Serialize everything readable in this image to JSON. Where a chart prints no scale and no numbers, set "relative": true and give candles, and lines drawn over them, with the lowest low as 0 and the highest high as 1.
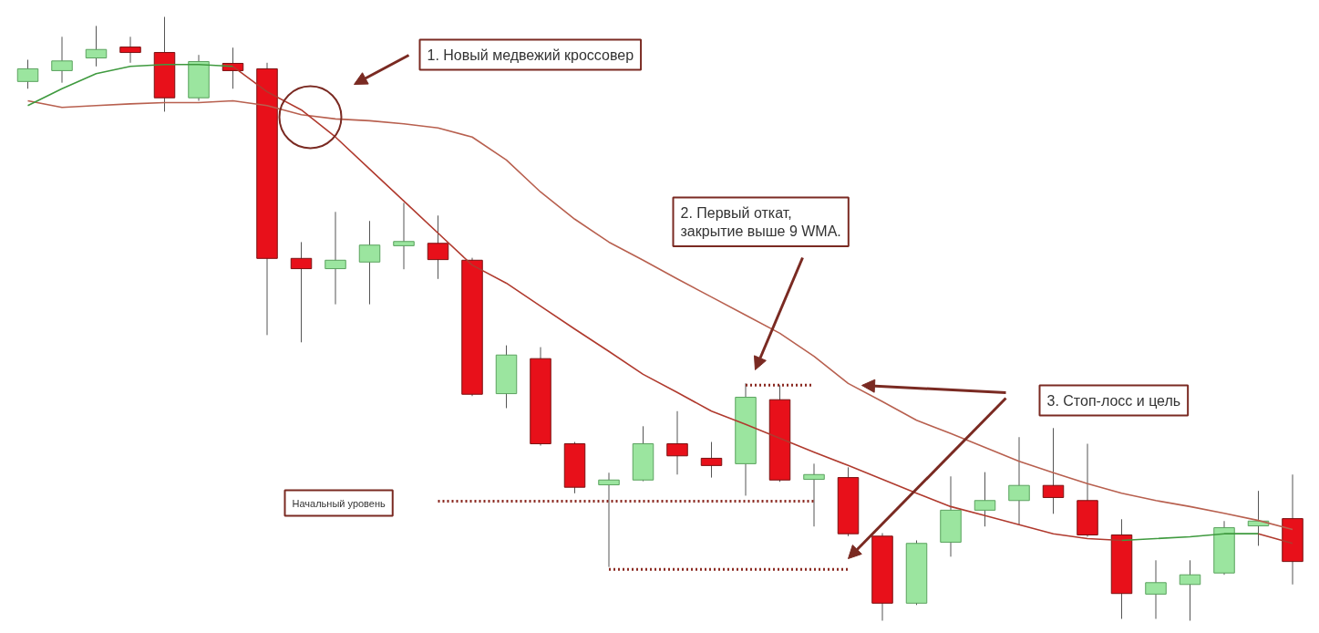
{
  "chart_data": {
    "type": "candlestick",
    "relative": true,
    "categories": [
      null,
      null,
      null,
      null,
      null,
      null,
      null,
      null,
      null,
      null,
      null,
      null,
      null,
      null,
      null,
      null,
      null,
      null,
      null,
      null,
      null,
      null,
      null,
      null,
      null,
      null,
      null,
      null,
      null,
      null,
      null,
      null,
      null,
      null,
      null,
      null,
      null,
      null
    ],
    "ohlc": [
      [
        0.893,
        0.929,
        0.881,
        0.914
      ],
      [
        0.911,
        0.967,
        0.891,
        0.927
      ],
      [
        0.932,
        0.985,
        0.918,
        0.946
      ],
      [
        0.95,
        0.967,
        0.924,
        0.941
      ],
      [
        0.941,
        1.0,
        0.843,
        0.866
      ],
      [
        0.866,
        0.937,
        0.861,
        0.926
      ],
      [
        0.923,
        0.949,
        0.881,
        0.911
      ],
      [
        0.914,
        0.924,
        0.473,
        0.6
      ],
      [
        0.6,
        0.627,
        0.461,
        0.583
      ],
      [
        0.583,
        0.677,
        0.524,
        0.597
      ],
      [
        0.594,
        0.662,
        0.524,
        0.622
      ],
      [
        0.621,
        0.692,
        0.582,
        0.628
      ],
      [
        0.625,
        0.671,
        0.566,
        0.598
      ],
      [
        0.597,
        0.601,
        0.372,
        0.375
      ],
      [
        0.376,
        0.456,
        0.352,
        0.44
      ],
      [
        0.434,
        0.453,
        0.29,
        0.293
      ],
      [
        0.293,
        0.296,
        0.211,
        0.221
      ],
      [
        0.225,
        0.245,
        0.089,
        0.233
      ],
      [
        0.233,
        0.322,
        0.231,
        0.293
      ],
      [
        0.293,
        0.347,
        0.242,
        0.273
      ],
      [
        0.269,
        0.296,
        0.237,
        0.257
      ],
      [
        0.26,
        0.393,
        0.207,
        0.37
      ],
      [
        0.366,
        0.39,
        0.23,
        0.233
      ],
      [
        0.234,
        0.26,
        0.156,
        0.242
      ],
      [
        0.237,
        0.254,
        0.14,
        0.144
      ],
      [
        0.14,
        0.145,
        0.0,
        0.029
      ],
      [
        0.029,
        0.133,
        0.026,
        0.128
      ],
      [
        0.13,
        0.239,
        0.106,
        0.183
      ],
      [
        0.183,
        0.246,
        0.156,
        0.199
      ],
      [
        0.199,
        0.304,
        0.159,
        0.224
      ],
      [
        0.224,
        0.319,
        0.177,
        0.204
      ],
      [
        0.199,
        0.293,
        0.139,
        0.142
      ],
      [
        0.142,
        0.168,
        0.003,
        0.045
      ],
      [
        0.044,
        0.1,
        0.003,
        0.063
      ],
      [
        0.06,
        0.1,
        0.0,
        0.076
      ],
      [
        0.079,
        0.165,
        0.076,
        0.154
      ],
      [
        0.157,
        0.215,
        0.124,
        0.165
      ],
      [
        0.169,
        0.242,
        0.06,
        0.098
      ]
    ],
    "colors": [
      "#9be59f",
      "#9be59f",
      "#9be59f",
      "#e8101a",
      "#e8101a",
      "#9be59f",
      "#e8101a",
      "#e8101a",
      "#e8101a",
      "#9be59f",
      "#9be59f",
      "#9be59f",
      "#e8101a",
      "#e8101a",
      "#9be59f",
      "#e8101a",
      "#e8101a",
      "#9be59f",
      "#9be59f",
      "#e8101a",
      "#e8101a",
      "#9be59f",
      "#e8101a",
      "#9be59f",
      "#e8101a",
      "#e8101a",
      "#9be59f",
      "#9be59f",
      "#9be59f",
      "#9be59f",
      "#e8101a",
      "#e8101a",
      "#e8101a",
      "#9be59f",
      "#9be59f",
      "#9be59f",
      "#9be59f",
      "#e8101a"
    ],
    "series": [
      {
        "type": "line",
        "color": "#b8604f",
        "line_style": "solid",
        "values": [
          0.861,
          0.85,
          0.853,
          0.856,
          0.858,
          0.858,
          0.861,
          0.853,
          0.838,
          0.831,
          0.828,
          0.823,
          0.816,
          0.801,
          0.763,
          0.71,
          0.665,
          0.627,
          0.597,
          0.566,
          0.536,
          0.506,
          0.476,
          0.438,
          0.393,
          0.363,
          0.332,
          0.31,
          0.287,
          0.264,
          0.245,
          0.227,
          0.211,
          0.199,
          0.189,
          0.178,
          0.166,
          0.151
        ]
      },
      {
        "type": "line",
        "color": "#3f9a3f",
        "line_style": "solid",
        "values": [
          0.853,
          0.881,
          0.906,
          0.918,
          0.921,
          0.921,
          0.918,
          null,
          null,
          null,
          null,
          null,
          null,
          null,
          null,
          null,
          null,
          null,
          null,
          null,
          null,
          null,
          null,
          null,
          null,
          null,
          null,
          null,
          null,
          null,
          null,
          null,
          0.133,
          0.136,
          0.139,
          0.144,
          0.144,
          null
        ]
      },
      {
        "type": "line",
        "color": "#b03a2e",
        "line_style": "solid",
        "values": [
          null,
          null,
          null,
          null,
          null,
          null,
          0.918,
          0.876,
          0.846,
          0.801,
          0.748,
          0.695,
          0.642,
          0.589,
          0.559,
          0.521,
          0.483,
          0.446,
          0.408,
          0.378,
          0.347,
          0.325,
          0.302,
          0.279,
          0.257,
          0.234,
          0.211,
          0.189,
          0.174,
          0.159,
          0.144,
          0.136,
          0.133,
          null,
          null,
          null,
          0.144,
          0.128
        ]
      },
      {
        "type": "line",
        "color": "#8b2a22",
        "line_style": "dotted",
        "values": [
          null,
          null,
          null,
          null,
          null,
          null,
          null,
          null,
          null,
          null,
          null,
          null,
          0.198,
          0.198,
          0.198,
          0.198,
          0.198,
          0.198,
          0.198,
          0.198,
          0.198,
          0.198,
          0.198,
          0.198,
          null,
          null,
          null,
          null,
          null,
          null,
          null,
          null,
          null,
          null,
          null,
          null,
          null,
          null
        ]
      },
      {
        "type": "line",
        "color": "#8b2a22",
        "line_style": "dotted",
        "values": [
          null,
          null,
          null,
          null,
          null,
          null,
          null,
          null,
          null,
          null,
          null,
          null,
          null,
          null,
          null,
          null,
          null,
          null,
          null,
          null,
          null,
          0.39,
          0.39,
          0.39,
          null,
          null,
          null,
          null,
          null,
          null,
          null,
          null,
          null,
          null,
          null,
          null,
          null,
          null
        ]
      },
      {
        "type": "line",
        "color": "#8b2a22",
        "line_style": "dotted",
        "values": [
          null,
          null,
          null,
          null,
          null,
          null,
          null,
          null,
          null,
          null,
          null,
          null,
          null,
          null,
          null,
          null,
          null,
          0.085,
          0.085,
          0.085,
          0.085,
          0.085,
          0.085,
          0.085,
          0.085,
          null,
          null,
          null,
          null,
          null,
          null,
          null,
          null,
          null,
          null,
          null,
          null,
          null
        ]
      }
    ],
    "annotations": [
      "1. Новый медвежий кроссовер",
      "2. Первый откат,\nзакрытие выше 9 WMA.",
      "3. Стоп-лосс и цель",
      "Начальный уровень"
    ]
  }
}
